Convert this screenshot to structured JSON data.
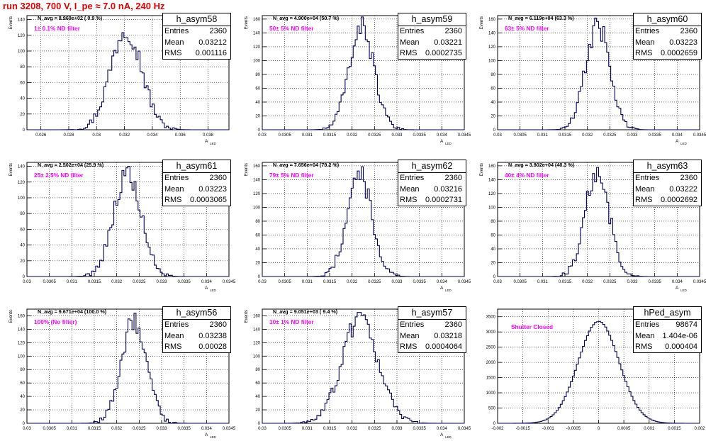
{
  "run_title": "run 3208,   700 V, I_pe ≈ 7.0 nA, 240 Hz",
  "axis": {
    "y_title": "Events",
    "x_title": "A",
    "x_title_sub": "LED"
  },
  "stats_labels": {
    "entries": "Entries",
    "mean": "Mean",
    "rms": "RMS"
  },
  "pads": [
    {
      "hist_name": "h_asym58",
      "navg": "N_avg = 8.969e+02 ( 0.9 %)",
      "label": "1± 0.1% ND filter",
      "entries": "2360",
      "mean": "0.03212",
      "rms": "0.001116"
    },
    {
      "hist_name": "h_asym59",
      "navg": "N_avg = 4.900e+04 (50.7 %)",
      "label": "50± 5% ND filter",
      "entries": "2360",
      "mean": "0.03221",
      "rms": "0.0002735"
    },
    {
      "hist_name": "h_asym60",
      "navg": "N_avg = 6.119e+04 (63.3 %)",
      "label": "63± 5% ND filter",
      "entries": "2360",
      "mean": "0.03223",
      "rms": "0.0002659"
    },
    {
      "hist_name": "h_asym61",
      "navg": "N_avg = 2.502e+04 (25.9 %)",
      "label": "25± 2.5% ND filter",
      "entries": "2360",
      "mean": "0.03223",
      "rms": "0.0003065"
    },
    {
      "hist_name": "h_asym62",
      "navg": "N_avg = 7.656e+04 (79.2 %)",
      "label": "79± 5% ND filter",
      "entries": "2360",
      "mean": "0.03216",
      "rms": "0.0002731"
    },
    {
      "hist_name": "h_asym63",
      "navg": "N_avg = 3.902e+04 (40.3 %)",
      "label": "40± 4% ND filter",
      "entries": "2360",
      "mean": "0.03222",
      "rms": "0.0002692"
    },
    {
      "hist_name": "h_asym56",
      "navg": "N_avg = 9.671e+04 (100.0 %)",
      "label": "100% (No filter)",
      "entries": "2360",
      "mean": "0.03238",
      "rms": "0.00028"
    },
    {
      "hist_name": "h_asym57",
      "navg": "N_avg = 9.051e+03 ( 9.4 %)",
      "label": "10± 1% ND filter",
      "entries": "2360",
      "mean": "0.03218",
      "rms": "0.0004064"
    },
    {
      "hist_name": "hPed_asym",
      "navg": "",
      "label": "Shutter Closed",
      "entries": "98674",
      "mean": "1.404e-06",
      "rms": "0.000404"
    }
  ],
  "chart_data": [
    {
      "type": "histogram",
      "title": "h_asym58",
      "xlabel": "A LED",
      "ylabel": "Events",
      "xlim": [
        0.025,
        0.0395
      ],
      "ylim": [
        0,
        145
      ],
      "xticks": [
        "0.026",
        "0.028",
        "0.03",
        "0.032",
        "0.034",
        "0.036",
        "0.038"
      ],
      "yticks": [
        "0",
        "20",
        "40",
        "60",
        "80",
        "100",
        "120",
        "140"
      ],
      "mean": 0.03212,
      "rms": 0.001116,
      "entries": 2360,
      "peak": 139
    },
    {
      "type": "histogram",
      "title": "h_asym59",
      "xlabel": "A LED",
      "ylabel": "Events",
      "xlim": [
        0.03,
        0.0345
      ],
      "ylim": [
        0,
        165
      ],
      "xticks": [
        "0.03",
        "0.0305",
        "0.031",
        "0.0315",
        "0.032",
        "0.0325",
        "0.033",
        "0.0335",
        "0.034",
        "0.0345"
      ],
      "yticks": [
        "0",
        "20",
        "40",
        "60",
        "80",
        "100",
        "120",
        "140",
        "160"
      ],
      "mean": 0.03221,
      "rms": 0.0002735,
      "entries": 2360,
      "peak": 163
    },
    {
      "type": "histogram",
      "title": "h_asym60",
      "xlabel": "A LED",
      "ylabel": "Events",
      "xlim": [
        0.03,
        0.0345
      ],
      "ylim": [
        0,
        165
      ],
      "xticks": [
        "0.03",
        "0.0305",
        "0.031",
        "0.0315",
        "0.032",
        "0.0325",
        "0.033",
        "0.0335",
        "0.034",
        "0.0345"
      ],
      "yticks": [
        "0",
        "20",
        "40",
        "60",
        "80",
        "100",
        "120",
        "140",
        "160"
      ],
      "mean": 0.03223,
      "rms": 0.0002659,
      "entries": 2360,
      "peak": 163
    },
    {
      "type": "histogram",
      "title": "h_asym61",
      "xlabel": "A LED",
      "ylabel": "Events",
      "xlim": [
        0.03,
        0.0345
      ],
      "ylim": [
        0,
        145
      ],
      "xticks": [
        "0.03",
        "0.0305",
        "0.031",
        "0.0315",
        "0.032",
        "0.0325",
        "0.033",
        "0.0335",
        "0.034",
        "0.0345"
      ],
      "yticks": [
        "0",
        "20",
        "40",
        "60",
        "80",
        "100",
        "120",
        "140"
      ],
      "mean": 0.03223,
      "rms": 0.0003065,
      "entries": 2360,
      "peak": 140
    },
    {
      "type": "histogram",
      "title": "h_asym62",
      "xlabel": "A LED",
      "ylabel": "Events",
      "xlim": [
        0.03,
        0.0345
      ],
      "ylim": [
        0,
        165
      ],
      "xticks": [
        "0.03",
        "0.0305",
        "0.031",
        "0.0315",
        "0.032",
        "0.0325",
        "0.033",
        "0.0335",
        "0.034",
        "0.0345"
      ],
      "yticks": [
        "0",
        "20",
        "40",
        "60",
        "80",
        "100",
        "120",
        "140",
        "160"
      ],
      "mean": 0.03216,
      "rms": 0.0002731,
      "entries": 2360,
      "peak": 160
    },
    {
      "type": "histogram",
      "title": "h_asym63",
      "xlabel": "A LED",
      "ylabel": "Events",
      "xlim": [
        0.03,
        0.0345
      ],
      "ylim": [
        0,
        165
      ],
      "xticks": [
        "0.03",
        "0.0305",
        "0.031",
        "0.0315",
        "0.032",
        "0.0325",
        "0.033",
        "0.0335",
        "0.034",
        "0.0345"
      ],
      "yticks": [
        "0",
        "20",
        "40",
        "60",
        "80",
        "100",
        "120",
        "140",
        "160"
      ],
      "mean": 0.03222,
      "rms": 0.0002692,
      "entries": 2360,
      "peak": 163
    },
    {
      "type": "histogram",
      "title": "h_asym56",
      "xlabel": "A LED",
      "ylabel": "Events",
      "xlim": [
        0.03,
        0.0345
      ],
      "ylim": [
        0,
        170
      ],
      "xticks": [
        "0.03",
        "0.0305",
        "0.031",
        "0.0315",
        "0.032",
        "0.0325",
        "0.033",
        "0.0335",
        "0.034",
        "0.0345"
      ],
      "yticks": [
        "0",
        "20",
        "40",
        "60",
        "80",
        "100",
        "120",
        "140",
        "160"
      ],
      "mean": 0.03238,
      "rms": 0.00028,
      "entries": 2360,
      "peak": 165
    },
    {
      "type": "histogram",
      "title": "h_asym57",
      "xlabel": "A LED",
      "ylabel": "Events",
      "xlim": [
        0.03,
        0.0345
      ],
      "ylim": [
        0,
        170
      ],
      "xticks": [
        "0.03",
        "0.0305",
        "0.031",
        "0.0315",
        "0.032",
        "0.0325",
        "0.033",
        "0.0335",
        "0.034",
        "0.0345"
      ],
      "yticks": [
        "0",
        "20",
        "40",
        "60",
        "80",
        "100",
        "120",
        "140",
        "160"
      ],
      "mean": 0.03218,
      "rms": 0.0004064,
      "entries": 2360,
      "peak": 165
    },
    {
      "type": "histogram",
      "title": "hPed_asym",
      "xlabel": "",
      "ylabel": "",
      "xlim": [
        -0.002,
        0.002
      ],
      "ylim": [
        0,
        3750
      ],
      "xticks": [
        "-0.002",
        "-0.0015",
        "-0.001",
        "-0.0005",
        "0",
        "0.0005",
        "0.001",
        "0.0015",
        "0.002"
      ],
      "yticks": [
        "0",
        "500",
        "1000",
        "1500",
        "2000",
        "2500",
        "3000",
        "3500"
      ],
      "mean": 1.404e-06,
      "rms": 0.000404,
      "entries": 98674,
      "peak": 3600
    }
  ],
  "colors": {
    "hist_line": "#00005a",
    "filter_label": "#ff00ff",
    "title": "#e00000",
    "grid": "#000000"
  }
}
